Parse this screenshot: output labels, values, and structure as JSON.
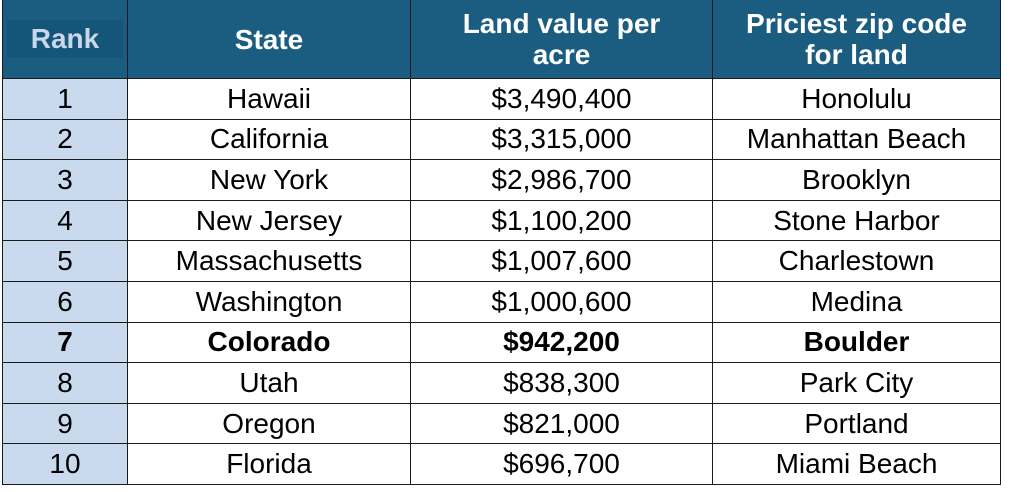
{
  "table": {
    "headers": [
      "Rank",
      "State",
      "Land value per acre",
      "Priciest zip code for land"
    ],
    "rows": [
      {
        "rank": "1",
        "state": "Hawaii",
        "value": "$3,490,400",
        "zip": "Honolulu"
      },
      {
        "rank": "2",
        "state": "California",
        "value": "$3,315,000",
        "zip": "Manhattan Beach"
      },
      {
        "rank": "3",
        "state": "New York",
        "value": "$2,986,700",
        "zip": "Brooklyn"
      },
      {
        "rank": "4",
        "state": "New Jersey",
        "value": "$1,100,200",
        "zip": "Stone Harbor"
      },
      {
        "rank": "5",
        "state": "Massachusetts",
        "value": "$1,007,600",
        "zip": "Charlestown"
      },
      {
        "rank": "6",
        "state": "Washington",
        "value": "$1,000,600",
        "zip": "Medina"
      },
      {
        "rank": "7",
        "state": "Colorado",
        "value": "$942,200",
        "zip": "Boulder",
        "highlight": true
      },
      {
        "rank": "8",
        "state": "Utah",
        "value": "$838,300",
        "zip": "Park City"
      },
      {
        "rank": "9",
        "state": "Oregon",
        "value": "$821,000",
        "zip": "Portland"
      },
      {
        "rank": "10",
        "state": "Florida",
        "value": "$696,700",
        "zip": "Miami Beach"
      }
    ]
  },
  "colors": {
    "header": "#1b5d80",
    "rank_cell": "#c9d9ee"
  }
}
